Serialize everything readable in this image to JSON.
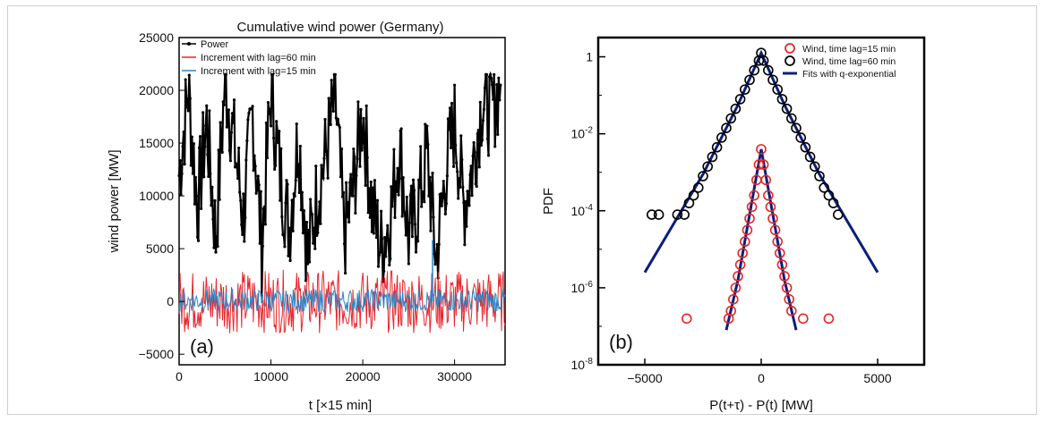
{
  "chart_data": [
    {
      "panel": "(a)",
      "type": "line",
      "title": "Cumulative wind power (Germany)",
      "xlabel": "t [×15 min]",
      "ylabel": "wind power [MW]",
      "xlim": [
        0,
        35500
      ],
      "ylim": [
        -6000,
        25000
      ],
      "xticks": [
        0,
        10000,
        20000,
        30000
      ],
      "yticks": [
        -5000,
        0,
        5000,
        10000,
        15000,
        20000,
        25000
      ],
      "legend_position": "top-left",
      "series": [
        {
          "name": "Power",
          "color": "#000000",
          "marker": "dot",
          "x": [
            0,
            1000,
            2000,
            3000,
            4000,
            5000,
            6000,
            7000,
            8000,
            9000,
            10000,
            11000,
            12000,
            13000,
            14000,
            15000,
            16000,
            17000,
            18000,
            19000,
            20000,
            21000,
            22000,
            23000,
            24000,
            25000,
            26000,
            27000,
            28000,
            29000,
            30000,
            31000,
            32000,
            33000,
            34000,
            35000
          ],
          "values": [
            12000,
            20000,
            9000,
            17000,
            6000,
            21000,
            15000,
            8000,
            18000,
            5000,
            20000,
            12000,
            7000,
            16000,
            4000,
            10000,
            14000,
            19500,
            6000,
            11000,
            18000,
            9000,
            5000,
            8000,
            15000,
            6000,
            9000,
            14000,
            4000,
            12000,
            17000,
            9000,
            13000,
            19000,
            18000,
            20500
          ]
        },
        {
          "name": "Increment with lag=60 min",
          "color": "#e8262a",
          "x_range": [
            0,
            35500
          ],
          "range": [
            -3000,
            3000
          ]
        },
        {
          "name": "Increment with lag=15 min",
          "color": "#2a86c8",
          "x_range": [
            0,
            35500
          ],
          "range": [
            -1000,
            1200
          ],
          "spike": {
            "x": 27600,
            "y": 5800
          }
        }
      ],
      "label_panel": "(a)"
    },
    {
      "panel": "(b)",
      "type": "scatter",
      "xlabel": "P(t+τ) - P(t) [MW]",
      "ylabel": "PDF",
      "xlim": [
        -7000,
        7000
      ],
      "ylim_log10": [
        -8,
        0.5
      ],
      "yscale": "log",
      "xticks": [
        -5000,
        0,
        5000
      ],
      "ytick_labels": [
        "10^-8",
        "10^-6",
        "10^-4",
        "10^-2",
        "1"
      ],
      "legend_position": "top-right",
      "series": [
        {
          "name": "Wind, time lag=15 min",
          "color": "#e8262a",
          "marker": "open-circle",
          "x": [
            -3200,
            -1400,
            -1300,
            -1200,
            -1100,
            -1000,
            -900,
            -800,
            -700,
            -600,
            -500,
            -400,
            -300,
            -200,
            -100,
            0,
            100,
            200,
            300,
            400,
            500,
            600,
            700,
            800,
            900,
            1000,
            1100,
            1200,
            1300,
            1800,
            2900
          ],
          "log10_pdf": [
            -6.8,
            -6.8,
            -6.6,
            -6.3,
            -6.0,
            -5.7,
            -5.4,
            -5.1,
            -4.8,
            -4.5,
            -4.2,
            -3.9,
            -3.6,
            -3.2,
            -2.8,
            -2.4,
            -2.8,
            -3.2,
            -3.6,
            -3.9,
            -4.2,
            -4.5,
            -4.8,
            -5.1,
            -5.4,
            -5.7,
            -6.0,
            -6.3,
            -6.6,
            -6.8,
            -6.8
          ]
        },
        {
          "name": "Wind, time lag=60 min",
          "color": "#000000",
          "marker": "open-circle",
          "x": [
            -4700,
            -4400,
            -3600,
            -3300,
            -3100,
            -2900,
            -2700,
            -2500,
            -2300,
            -2100,
            -1900,
            -1700,
            -1500,
            -1300,
            -1100,
            -900,
            -700,
            -500,
            -300,
            -100,
            0,
            100,
            300,
            500,
            700,
            900,
            1100,
            1300,
            1500,
            1700,
            1900,
            2100,
            2300,
            2500,
            2700,
            2900,
            3100,
            3300
          ],
          "log10_pdf": [
            -4.1,
            -4.1,
            -4.1,
            -4.1,
            -3.8,
            -3.6,
            -3.4,
            -3.1,
            -2.85,
            -2.6,
            -2.35,
            -2.1,
            -1.85,
            -1.6,
            -1.35,
            -1.1,
            -0.85,
            -0.6,
            -0.35,
            -0.1,
            0.1,
            -0.1,
            -0.35,
            -0.6,
            -0.85,
            -1.1,
            -1.35,
            -1.6,
            -1.85,
            -2.1,
            -2.35,
            -2.6,
            -2.85,
            -3.1,
            -3.4,
            -3.6,
            -3.8,
            -4.1
          ]
        },
        {
          "name": "Fits with q-exponential",
          "color": "#0b1f7a",
          "marker": "line",
          "fits": [
            {
              "x": [
                -5000,
                -2500,
                -1000,
                0,
                1000,
                2500,
                5000
              ],
              "log10_pdf": [
                -5.6,
                -3.05,
                -1.25,
                0.1,
                -1.25,
                -3.05,
                -5.6
              ]
            },
            {
              "x": [
                -1500,
                -1000,
                -500,
                0,
                500,
                1000,
                1500
              ],
              "log10_pdf": [
                -7.1,
                -5.8,
                -4.1,
                -2.4,
                -4.1,
                -5.8,
                -7.1
              ]
            }
          ]
        }
      ],
      "label_panel": "(b)"
    }
  ]
}
